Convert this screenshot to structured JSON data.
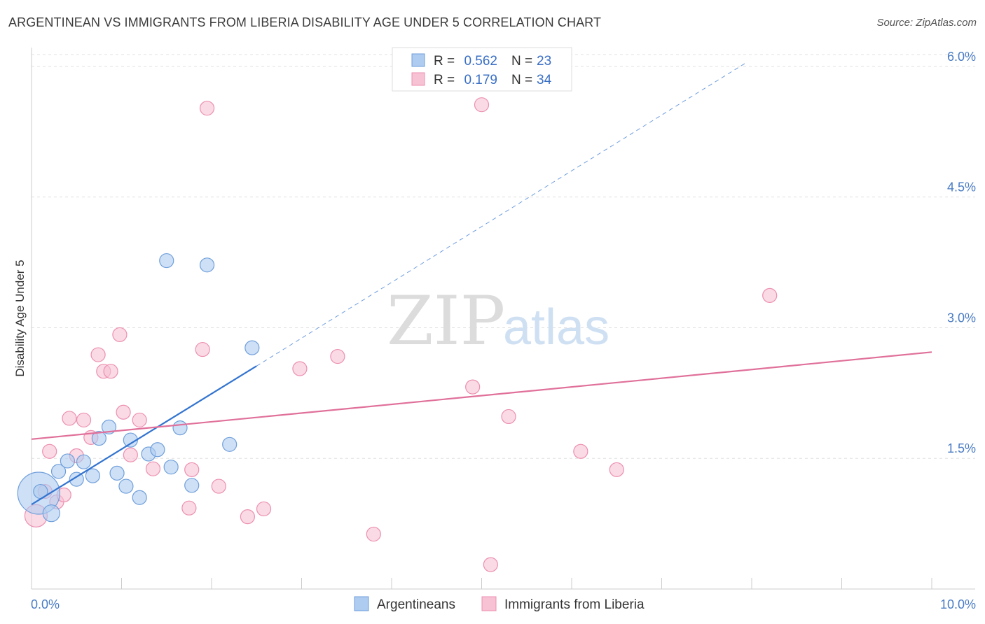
{
  "header": {
    "title": "ARGENTINEAN VS IMMIGRANTS FROM LIBERIA DISABILITY AGE UNDER 5 CORRELATION CHART",
    "source": "Source: ZipAtlas.com"
  },
  "watermark": {
    "zip": "ZIP",
    "atlas": "atlas"
  },
  "colors": {
    "blue_fill": "#aecbf0",
    "blue_stroke": "#6f9fdb",
    "blue_line": "#3374d0",
    "pink_fill": "#f7c2d3",
    "pink_stroke": "#ec8fb0",
    "pink_line": "#e0709a",
    "grid": "#e0e0e0",
    "tick_text": "#4a7cc4"
  },
  "legend": {
    "r_label": "R =",
    "n_label": "N =",
    "rows": [
      {
        "r": "0.562",
        "n": "23"
      },
      {
        "r": "0.179",
        "n": "34"
      }
    ]
  },
  "chart_data": {
    "type": "scatter",
    "title": "ARGENTINEAN VS IMMIGRANTS FROM LIBERIA DISABILITY AGE UNDER 5 CORRELATION CHART",
    "xlabel": "",
    "ylabel": "Disability Age Under 5",
    "xlim": [
      0,
      10
    ],
    "ylim": [
      0,
      6.2
    ],
    "x_tick_labels": {
      "min": "0.0%",
      "max": "10.0%"
    },
    "y_ticks": [
      {
        "value": 1.5,
        "label": "1.5%"
      },
      {
        "value": 3.0,
        "label": "3.0%"
      },
      {
        "value": 4.5,
        "label": "4.5%"
      },
      {
        "value": 6.0,
        "label": "6.0%"
      }
    ],
    "grid": true,
    "legend_position": "top-center",
    "series": [
      {
        "name": "Argentineans",
        "color": "#aecbf0",
        "points": [
          [
            0.08,
            1.1
          ],
          [
            0.1,
            1.12
          ],
          [
            0.22,
            0.87
          ],
          [
            0.3,
            1.35
          ],
          [
            0.4,
            1.47
          ],
          [
            0.5,
            1.26
          ],
          [
            0.58,
            1.46
          ],
          [
            0.68,
            1.3
          ],
          [
            0.75,
            1.73
          ],
          [
            0.86,
            1.86
          ],
          [
            0.95,
            1.33
          ],
          [
            1.05,
            1.18
          ],
          [
            1.1,
            1.71
          ],
          [
            1.2,
            1.05
          ],
          [
            1.3,
            1.55
          ],
          [
            1.4,
            1.6
          ],
          [
            1.5,
            3.77
          ],
          [
            1.55,
            1.4
          ],
          [
            1.65,
            1.85
          ],
          [
            1.78,
            1.19
          ],
          [
            1.95,
            3.72
          ],
          [
            2.2,
            1.66
          ],
          [
            2.45,
            2.77
          ]
        ],
        "sizes": [
          30,
          10,
          12,
          10,
          10,
          10,
          10,
          10,
          10,
          10,
          10,
          10,
          10,
          10,
          10,
          10,
          10,
          10,
          10,
          10,
          10,
          10,
          10
        ],
        "trend": {
          "x": [
            0.0,
            2.5
          ],
          "y": [
            0.97,
            2.56
          ]
        },
        "trend_extension": {
          "x": [
            2.5,
            7.95
          ],
          "y": [
            2.56,
            6.05
          ]
        }
      },
      {
        "name": "Immigrants from Liberia",
        "color": "#f7c2d3",
        "points": [
          [
            0.05,
            0.84
          ],
          [
            0.15,
            1.12
          ],
          [
            0.2,
            1.58
          ],
          [
            0.28,
            1.0
          ],
          [
            0.36,
            1.08
          ],
          [
            0.42,
            1.96
          ],
          [
            0.5,
            1.53
          ],
          [
            0.58,
            1.94
          ],
          [
            0.66,
            1.74
          ],
          [
            0.74,
            2.69
          ],
          [
            0.8,
            2.5
          ],
          [
            0.88,
            2.5
          ],
          [
            0.98,
            2.92
          ],
          [
            1.02,
            2.03
          ],
          [
            1.1,
            1.54
          ],
          [
            1.2,
            1.94
          ],
          [
            1.35,
            1.38
          ],
          [
            1.75,
            0.93
          ],
          [
            1.78,
            1.37
          ],
          [
            1.9,
            2.75
          ],
          [
            1.95,
            5.52
          ],
          [
            2.08,
            1.18
          ],
          [
            2.4,
            0.83
          ],
          [
            2.58,
            0.92
          ],
          [
            2.98,
            2.53
          ],
          [
            3.4,
            2.67
          ],
          [
            3.8,
            0.63
          ],
          [
            4.9,
            2.32
          ],
          [
            5.0,
            5.56
          ],
          [
            5.1,
            0.28
          ],
          [
            5.3,
            1.98
          ],
          [
            6.1,
            1.58
          ],
          [
            6.5,
            1.37
          ],
          [
            8.2,
            3.37
          ]
        ],
        "sizes": [
          16,
          10,
          10,
          10,
          10,
          10,
          10,
          10,
          10,
          10,
          10,
          10,
          10,
          10,
          10,
          10,
          10,
          10,
          10,
          10,
          10,
          10,
          10,
          10,
          10,
          10,
          10,
          10,
          10,
          10,
          10,
          10,
          10,
          10
        ],
        "trend": {
          "x": [
            0.0,
            10.0
          ],
          "y": [
            1.72,
            2.72
          ]
        }
      }
    ]
  }
}
